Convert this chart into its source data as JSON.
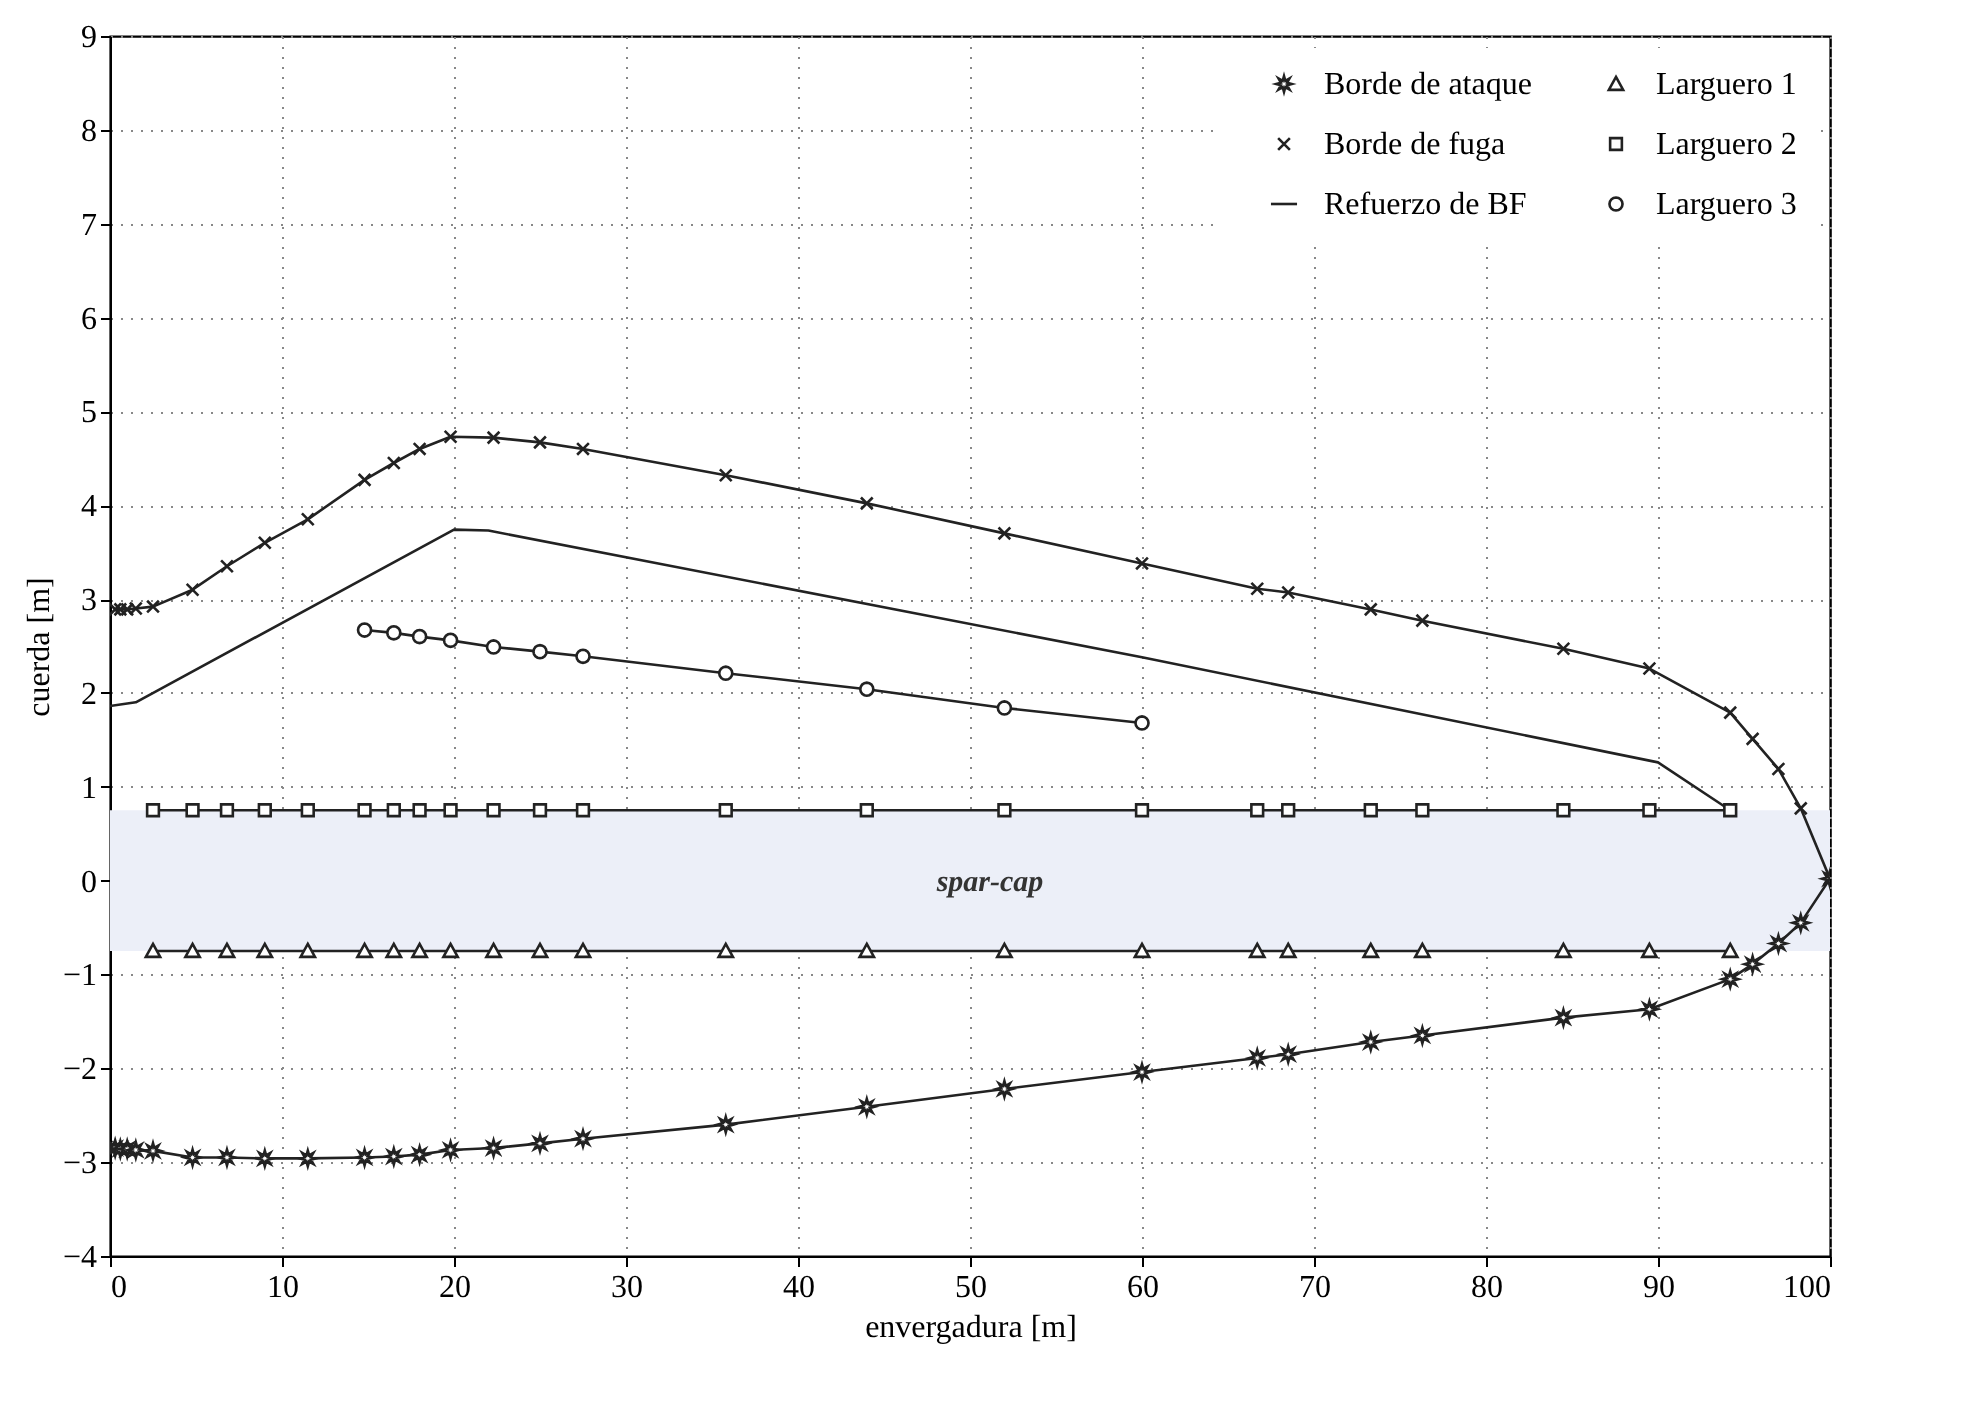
{
  "chart_data": {
    "type": "line",
    "xlabel": "envergadura [m]",
    "ylabel": "cuerda [m]",
    "xlim": [
      0,
      100
    ],
    "ylim": [
      -4,
      9
    ],
    "xticks": [
      0,
      10,
      20,
      30,
      40,
      50,
      60,
      70,
      80,
      90,
      100
    ],
    "yticks": [
      -4,
      -3,
      -2,
      -1,
      0,
      1,
      2,
      3,
      4,
      5,
      6,
      7,
      8,
      9
    ],
    "grid": true,
    "legend": "top right",
    "line_style": "solid",
    "bands": [
      {
        "axis": "y",
        "from": -0.75,
        "to": 0.75,
        "label": "spar-cap",
        "color": "#eceff8"
      }
    ],
    "series": [
      {
        "name": "Borde de ataque",
        "color": "#222222",
        "marker": "star",
        "x": [
          0.3,
          0.6,
          1,
          1.5,
          2.5,
          4.8,
          6.8,
          9,
          11.5,
          14.8,
          16.5,
          18,
          19.8,
          22.3,
          25,
          27.5,
          35.8,
          44,
          52,
          60,
          66.7,
          68.5,
          73.3,
          76.3,
          84.5,
          89.5,
          94.2,
          95.5,
          97,
          98.3,
          100
        ],
        "values": [
          -2.85,
          -2.86,
          -2.86,
          -2.87,
          -2.88,
          -2.95,
          -2.95,
          -2.96,
          -2.96,
          -2.95,
          -2.94,
          -2.92,
          -2.87,
          -2.85,
          -2.8,
          -2.75,
          -2.6,
          -2.41,
          -2.22,
          -2.04,
          -1.89,
          -1.85,
          -1.72,
          -1.65,
          -1.46,
          -1.37,
          -1.05,
          -0.89,
          -0.67,
          -0.45,
          0.02
        ]
      },
      {
        "name": "Borde de fuga",
        "color": "#222222",
        "marker": "cross",
        "x": [
          0.3,
          0.6,
          1,
          1.5,
          2.5,
          4.8,
          6.8,
          9,
          11.5,
          14.8,
          16.5,
          18,
          19.8,
          22.3,
          25,
          27.5,
          35.8,
          44,
          52,
          60,
          66.7,
          68.5,
          73.3,
          76.3,
          84.5,
          89.5,
          94.2,
          95.5,
          97,
          98.3,
          100
        ],
        "values": [
          2.89,
          2.89,
          2.89,
          2.9,
          2.92,
          3.1,
          3.35,
          3.6,
          3.85,
          4.27,
          4.45,
          4.6,
          4.73,
          4.72,
          4.67,
          4.6,
          4.32,
          4.02,
          3.7,
          3.38,
          3.11,
          3.07,
          2.89,
          2.77,
          2.47,
          2.26,
          1.79,
          1.51,
          1.19,
          0.77,
          0.02
        ]
      },
      {
        "name": "Refuerzo de BF",
        "color": "#222222",
        "marker": "none",
        "x": [
          0,
          1.5,
          20,
          22,
          60,
          90,
          94.2
        ],
        "values": [
          1.86,
          1.9,
          3.74,
          3.73,
          2.38,
          1.26,
          0.75
        ]
      },
      {
        "name": "Larguero 1",
        "color": "#222222",
        "marker": "triangle",
        "x": [
          2.5,
          4.8,
          6.8,
          9,
          11.5,
          14.8,
          16.5,
          18,
          19.8,
          22.3,
          25,
          27.5,
          35.8,
          44,
          52,
          60,
          66.7,
          68.5,
          73.3,
          76.3,
          84.5,
          89.5,
          94.2
        ],
        "values": [
          -0.75,
          -0.75,
          -0.75,
          -0.75,
          -0.75,
          -0.75,
          -0.75,
          -0.75,
          -0.75,
          -0.75,
          -0.75,
          -0.75,
          -0.75,
          -0.75,
          -0.75,
          -0.75,
          -0.75,
          -0.75,
          -0.75,
          -0.75,
          -0.75,
          -0.75,
          -0.75
        ]
      },
      {
        "name": "Larguero 2",
        "color": "#222222",
        "marker": "square",
        "x": [
          2.5,
          4.8,
          6.8,
          9,
          11.5,
          14.8,
          16.5,
          18,
          19.8,
          22.3,
          25,
          27.5,
          35.8,
          44,
          52,
          60,
          66.7,
          68.5,
          73.3,
          76.3,
          84.5,
          89.5,
          94.2
        ],
        "values": [
          0.75,
          0.75,
          0.75,
          0.75,
          0.75,
          0.75,
          0.75,
          0.75,
          0.75,
          0.75,
          0.75,
          0.75,
          0.75,
          0.75,
          0.75,
          0.75,
          0.75,
          0.75,
          0.75,
          0.75,
          0.75,
          0.75,
          0.75
        ]
      },
      {
        "name": "Larguero 3",
        "color": "#222222",
        "marker": "circle",
        "x": [
          14.8,
          16.5,
          18,
          19.8,
          22.3,
          25,
          27.5,
          35.8,
          44,
          52,
          60
        ],
        "values": [
          2.67,
          2.64,
          2.6,
          2.56,
          2.49,
          2.44,
          2.39,
          2.21,
          2.04,
          1.84,
          1.68
        ]
      }
    ]
  }
}
